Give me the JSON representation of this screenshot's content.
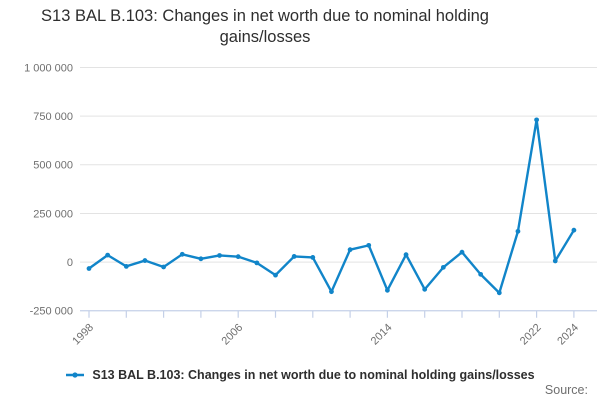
{
  "title": "S13 BAL B.103: Changes in net worth due to nominal holding gains/losses",
  "legend": {
    "label": "S13 BAL B.103: Changes in net worth due to nominal holding gains/losses"
  },
  "footer": {
    "source_label": "Source:"
  },
  "colors": {
    "line": "#1185c9",
    "grid": "#e3e3e3",
    "axis": "#c4d0e8",
    "muted_text": "#6f6f6f",
    "text": "#2e2e2e"
  },
  "chart_data": {
    "type": "line",
    "title": "S13 BAL B.103: Changes in net worth due to nominal holding gains/losses",
    "series_name": "S13 BAL B.103: Changes in net worth due to nominal holding gains/losses",
    "x": [
      1998,
      1999,
      2000,
      2001,
      2002,
      2003,
      2004,
      2005,
      2006,
      2007,
      2008,
      2009,
      2010,
      2011,
      2012,
      2013,
      2014,
      2015,
      2016,
      2017,
      2018,
      2019,
      2020,
      2021,
      2022,
      2023,
      2024
    ],
    "values": [
      -33000,
      36000,
      -22000,
      8000,
      -25000,
      40000,
      17000,
      34000,
      28000,
      -4000,
      -67000,
      29000,
      24000,
      -152000,
      64000,
      86000,
      -145000,
      38000,
      -140000,
      -27000,
      51000,
      -63000,
      -158000,
      158000,
      731000,
      6000,
      164000
    ],
    "ylim": [
      -250000,
      1000000
    ],
    "yticks": [
      {
        "value": 1000000,
        "label": "1 000 000"
      },
      {
        "value": 750000,
        "label": "750 000"
      },
      {
        "value": 500000,
        "label": "500 000"
      },
      {
        "value": 250000,
        "label": "250 000"
      },
      {
        "value": 0,
        "label": "0"
      },
      {
        "value": -250000,
        "label": "-250 000"
      }
    ],
    "xtick_years": [
      1998,
      2000,
      2002,
      2004,
      2006,
      2008,
      2010,
      2012,
      2014,
      2016,
      2018,
      2020,
      2022,
      2024
    ],
    "xtick_labeled_years": [
      1998,
      2006,
      2014,
      2022,
      2024
    ],
    "grid": true,
    "legend_position": "bottom"
  }
}
